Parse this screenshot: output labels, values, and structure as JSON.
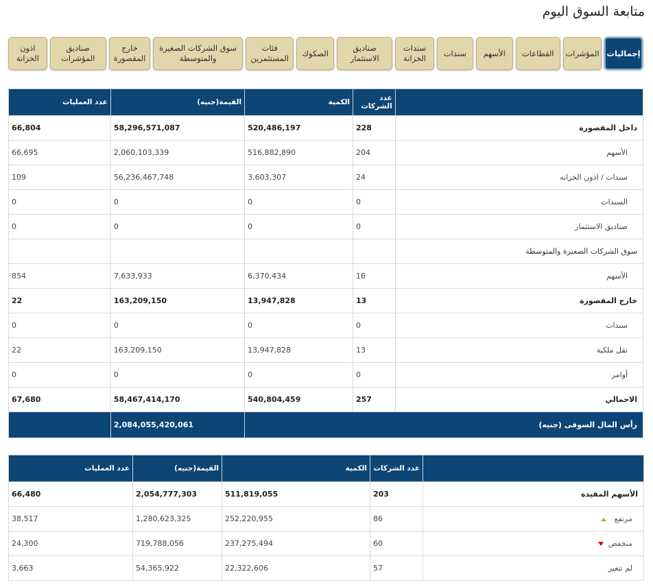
{
  "page_title": "متابعة السوق اليوم",
  "tabs": [
    {
      "label": "إجماليات",
      "active": true
    },
    {
      "label": "المؤشرات"
    },
    {
      "label": "القطاعات"
    },
    {
      "label": "الأسهم"
    },
    {
      "label": "سندات"
    },
    {
      "label": "سندات\nالخزانة"
    },
    {
      "label": "صناديق\nالاستثمار"
    },
    {
      "label": "الصكوك"
    },
    {
      "label": "فئات\nالمستثمرين"
    },
    {
      "label": "سوق الشركات الصغيرة\nوالمتوسطة"
    },
    {
      "label": "خارج\nالمقصورة"
    },
    {
      "label": "صناديق\nالمؤشرات"
    },
    {
      "label": "اذون\nالخزانة"
    }
  ],
  "summary_table": {
    "headers": {
      "companies": "عدد الشركات",
      "quantity": "الكمية",
      "value": "القيمة(جنيه)",
      "trades": "عدد العمليات"
    },
    "rows": [
      {
        "label": "داخل المقصورة",
        "companies": "228",
        "quantity": "520,486,197",
        "value": "58,296,571,087",
        "trades": "66,804"
      },
      {
        "label": "الأسهم",
        "companies": "204",
        "quantity": "516,882,890",
        "value": "2,060,103,339",
        "trades": "66,695"
      },
      {
        "label": "سندات / اذون الخزانه",
        "companies": "24",
        "quantity": "3,603,307",
        "value": "56,236,467,748",
        "trades": "109"
      },
      {
        "label": "السندات",
        "companies": "0",
        "quantity": "0",
        "value": "0",
        "trades": "0"
      },
      {
        "label": "صناديق الاستثمار",
        "companies": "0",
        "quantity": "0",
        "value": "0",
        "trades": "0"
      },
      {
        "label": "سوق الشركات الصغيرة والمتوسطة",
        "companies": "",
        "quantity": "",
        "value": "",
        "trades": ""
      },
      {
        "label": "الأسهم",
        "companies": "16",
        "quantity": "6,370,434",
        "value": "7,633,933",
        "trades": "854"
      },
      {
        "label": "خارج المقصورة",
        "companies": "13",
        "quantity": "13,947,828",
        "value": "163,209,150",
        "trades": "22"
      },
      {
        "label": "سندات",
        "companies": "0",
        "quantity": "0",
        "value": "0",
        "trades": "0"
      },
      {
        "label": "نقل ملكية",
        "companies": "13",
        "quantity": "13,947,828",
        "value": "163,209,150",
        "trades": "22"
      },
      {
        "label": "أوامر",
        "companies": "0",
        "quantity": "0",
        "value": "0",
        "trades": "0"
      },
      {
        "label": "الاجمالي",
        "companies": "257",
        "quantity": "540,804,459",
        "value": "58,467,414,170",
        "trades": "67,680"
      }
    ],
    "market_cap_label": "رأس المال السوقى (جنيه)",
    "market_cap_value": "2,084,055,420,061"
  },
  "stocks_table": {
    "headers": {
      "companies": "عدد الشركات",
      "quantity": "الكمية",
      "value": "القيمة(جنيه)",
      "trades": "عدد العمليات"
    },
    "rows": [
      {
        "label": "الأسهم المقيدة",
        "companies": "203",
        "quantity": "511,819,055",
        "value": "2,054,777,303",
        "trades": "66,480"
      },
      {
        "label": "مرتفع",
        "companies": "86",
        "quantity": "252,220,955",
        "value": "1,280,623,325",
        "trades": "38,517"
      },
      {
        "label": "منخفض",
        "companies": "60",
        "quantity": "237,275,494",
        "value": "719,788,056",
        "trades": "24,300"
      },
      {
        "label": "لم تتغير",
        "companies": "57",
        "quantity": "22,322,606",
        "value": "54,365,922",
        "trades": "3,663"
      }
    ]
  },
  "colors": {
    "header_bg": "#0d4574",
    "tab_bg": "#e2d6ab",
    "up": "#8bbf2a",
    "down": "#cc0000"
  }
}
